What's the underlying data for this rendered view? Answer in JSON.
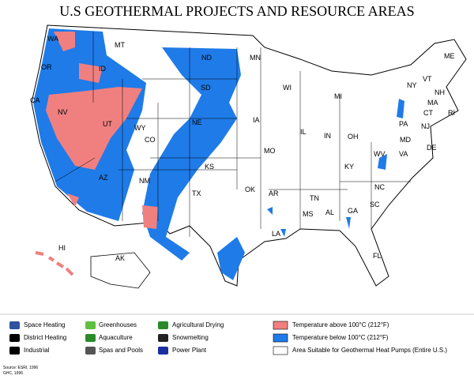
{
  "title": "U.S GEOTHERMAL PROJECTS AND RESOURCE AREAS",
  "states": [
    "WA",
    "OR",
    "CA",
    "NV",
    "ID",
    "MT",
    "WY",
    "UT",
    "AZ",
    "NM",
    "CO",
    "ND",
    "SD",
    "NE",
    "KS",
    "OK",
    "TX",
    "MN",
    "IA",
    "MO",
    "AR",
    "LA",
    "WI",
    "IL",
    "MI",
    "IN",
    "OH",
    "KY",
    "TN",
    "MS",
    "AL",
    "GA",
    "FL",
    "SC",
    "NC",
    "VA",
    "WV",
    "PA",
    "NY",
    "VT",
    "NH",
    "ME",
    "MA",
    "CT",
    "RI",
    "NJ",
    "MD",
    "DE",
    "HI",
    "AK"
  ],
  "legend": {
    "items": [
      "Space Heating",
      "District Heating",
      "Industrial",
      "Greenhouses",
      "Aquaculture",
      "Spas and Pools",
      "Agricultural Drying",
      "Snowmelting",
      "Power Plant",
      "Temperature above 100°C (212°F)",
      "Temperature below 100°C (212°F)",
      "Area Suitable for Geothermal Heat Pumps (Entire U.S.)"
    ]
  },
  "source": [
    "Source: ESRI, 1996",
    "GHC, 1996"
  ]
}
